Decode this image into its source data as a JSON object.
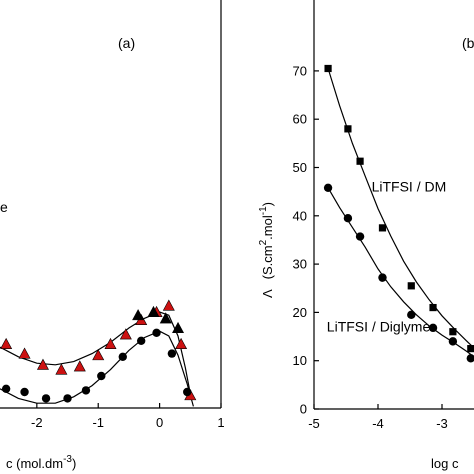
{
  "chart_data": [
    {
      "type": "scatter",
      "panel_label": "(a)",
      "xlabel": "c (mol.dm",
      "xlabel_sup": "-3",
      "xlabel_tail": ")",
      "xlim": [
        -2.6,
        1
      ],
      "x_ticks": [
        "-2",
        "-1",
        "0",
        "1"
      ],
      "x_tick_values": [
        -2,
        -1,
        0,
        1
      ],
      "annotations": [
        {
          "text": "e"
        }
      ],
      "series": [
        {
          "marker": "triangle",
          "color": "#cc1111",
          "x": [
            -2.5,
            -2.2,
            -1.9,
            -1.6,
            -1.3,
            -1.0,
            -0.8,
            -0.55,
            -0.3,
            -0.05,
            0.15,
            0.35,
            0.5
          ],
          "y": [
            0.4,
            0.34,
            0.27,
            0.24,
            0.26,
            0.33,
            0.4,
            0.46,
            0.55,
            0.6,
            0.64,
            0.4,
            0.08
          ]
        },
        {
          "marker": "triangle",
          "color": "#000000",
          "x": [
            -0.35,
            -0.1,
            0.1,
            0.3
          ],
          "y": [
            0.58,
            0.6,
            0.56,
            0.5
          ]
        },
        {
          "marker": "circle",
          "color": "#000000",
          "x": [
            -2.5,
            -2.2,
            -1.85,
            -1.5,
            -1.2,
            -0.95,
            -0.6,
            -0.3,
            -0.05,
            0.2,
            0.45
          ],
          "y": [
            0.12,
            0.1,
            0.06,
            0.06,
            0.11,
            0.2,
            0.32,
            0.42,
            0.47,
            0.34,
            0.1
          ]
        }
      ],
      "curves": [
        {
          "x": [
            -2.6,
            -2.3,
            -2.0,
            -1.7,
            -1.4,
            -1.1,
            -0.8,
            -0.5,
            -0.25,
            0.0,
            0.15,
            0.3,
            0.42,
            0.52
          ],
          "y": [
            0.38,
            0.32,
            0.28,
            0.27,
            0.29,
            0.34,
            0.41,
            0.5,
            0.56,
            0.6,
            0.58,
            0.45,
            0.25,
            0.05
          ]
        },
        {
          "x": [
            -2.6,
            -2.3,
            -2.0,
            -1.7,
            -1.4,
            -1.1,
            -0.8,
            -0.5,
            -0.25,
            0.0,
            0.15,
            0.3,
            0.45,
            0.55
          ],
          "y": [
            0.12,
            0.06,
            0.03,
            0.03,
            0.07,
            0.14,
            0.24,
            0.36,
            0.44,
            0.48,
            0.45,
            0.33,
            0.15,
            0.01
          ]
        }
      ]
    },
    {
      "type": "scatter",
      "panel_label": "(b",
      "xlabel": "log c",
      "ylabel_symbol": "Λ",
      "ylabel_units": "(S.cm",
      "ylabel_sup1": "2",
      "ylabel_mid": ".mol",
      "ylabel_sup2": "-1",
      "ylabel_tail": ")",
      "xlim": [
        -5,
        -2.2
      ],
      "ylim": [
        0,
        75
      ],
      "x_ticks": [
        "-5",
        "-4",
        "-3"
      ],
      "x_tick_values": [
        -5,
        -4,
        -3
      ],
      "y_ticks": [
        "0",
        "10",
        "20",
        "30",
        "40",
        "50",
        "60",
        "70"
      ],
      "y_tick_values": [
        0,
        10,
        20,
        30,
        40,
        50,
        60,
        70
      ],
      "annotations": [
        {
          "text": "LiTFSI / DM",
          "x": -4.1,
          "y": 45
        },
        {
          "text": "LiTFSI / Diglyme",
          "x": -4.8,
          "y": 16
        }
      ],
      "series": [
        {
          "marker": "square",
          "color": "#000000",
          "x": [
            -4.78,
            -4.47,
            -4.28,
            -3.93,
            -3.48,
            -3.14,
            -2.83,
            -2.55
          ],
          "y": [
            70.5,
            58.0,
            51.3,
            37.5,
            25.5,
            21.0,
            16.0,
            12.5
          ]
        },
        {
          "marker": "circle",
          "color": "#000000",
          "x": [
            -4.78,
            -4.47,
            -4.28,
            -3.93,
            -3.48,
            -3.14,
            -2.83,
            -2.55
          ],
          "y": [
            45.8,
            39.5,
            35.7,
            27.2,
            19.5,
            16.8,
            14.0,
            10.5
          ]
        }
      ],
      "curves": [
        {
          "x": [
            -4.78,
            -4.6,
            -4.4,
            -4.2,
            -4.0,
            -3.8,
            -3.6,
            -3.4,
            -3.2,
            -3.0,
            -2.8,
            -2.6,
            -2.45
          ],
          "y": [
            70.5,
            62.8,
            55.0,
            48.2,
            41.5,
            35.8,
            30.6,
            26.3,
            22.6,
            19.3,
            16.5,
            13.9,
            12.0
          ]
        },
        {
          "x": [
            -4.78,
            -4.6,
            -4.4,
            -4.2,
            -4.0,
            -3.8,
            -3.6,
            -3.4,
            -3.2,
            -3.0,
            -2.8,
            -2.6,
            -2.45
          ],
          "y": [
            45.8,
            41.7,
            37.6,
            33.5,
            29.0,
            25.3,
            22.2,
            19.5,
            17.2,
            15.3,
            13.6,
            11.8,
            10.3
          ]
        }
      ]
    }
  ]
}
